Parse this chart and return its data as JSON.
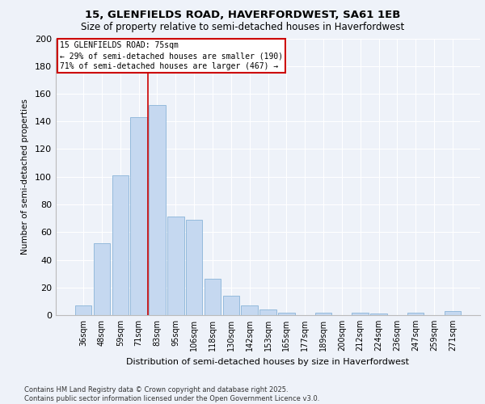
{
  "title_line1": "15, GLENFIELDS ROAD, HAVERFORDWEST, SA61 1EB",
  "title_line2": "Size of property relative to semi-detached houses in Haverfordwest",
  "xlabel": "Distribution of semi-detached houses by size in Haverfordwest",
  "ylabel": "Number of semi-detached properties",
  "footnote": "Contains HM Land Registry data © Crown copyright and database right 2025.\nContains public sector information licensed under the Open Government Licence v3.0.",
  "categories": [
    "36sqm",
    "48sqm",
    "59sqm",
    "71sqm",
    "83sqm",
    "95sqm",
    "106sqm",
    "118sqm",
    "130sqm",
    "142sqm",
    "153sqm",
    "165sqm",
    "177sqm",
    "189sqm",
    "200sqm",
    "212sqm",
    "224sqm",
    "236sqm",
    "247sqm",
    "259sqm",
    "271sqm"
  ],
  "values": [
    7,
    52,
    101,
    143,
    152,
    71,
    69,
    26,
    14,
    7,
    4,
    2,
    0,
    2,
    0,
    2,
    1,
    0,
    2,
    0,
    3
  ],
  "bar_color": "#c5d8f0",
  "bar_edge_color": "#8ab4d8",
  "vline_color": "#cc0000",
  "vline_pos": 3.5,
  "annotation_title": "15 GLENFIELDS ROAD: 75sqm",
  "annotation_line1": "← 29% of semi-detached houses are smaller (190)",
  "annotation_line2": "71% of semi-detached houses are larger (467) →",
  "annotation_box_color": "#ffffff",
  "annotation_box_edge": "#cc0000",
  "ylim": [
    0,
    200
  ],
  "yticks": [
    0,
    20,
    40,
    60,
    80,
    100,
    120,
    140,
    160,
    180,
    200
  ],
  "bg_color": "#eef2f9",
  "grid_color": "#ffffff",
  "title_fontsize": 9.5,
  "subtitle_fontsize": 8.5
}
